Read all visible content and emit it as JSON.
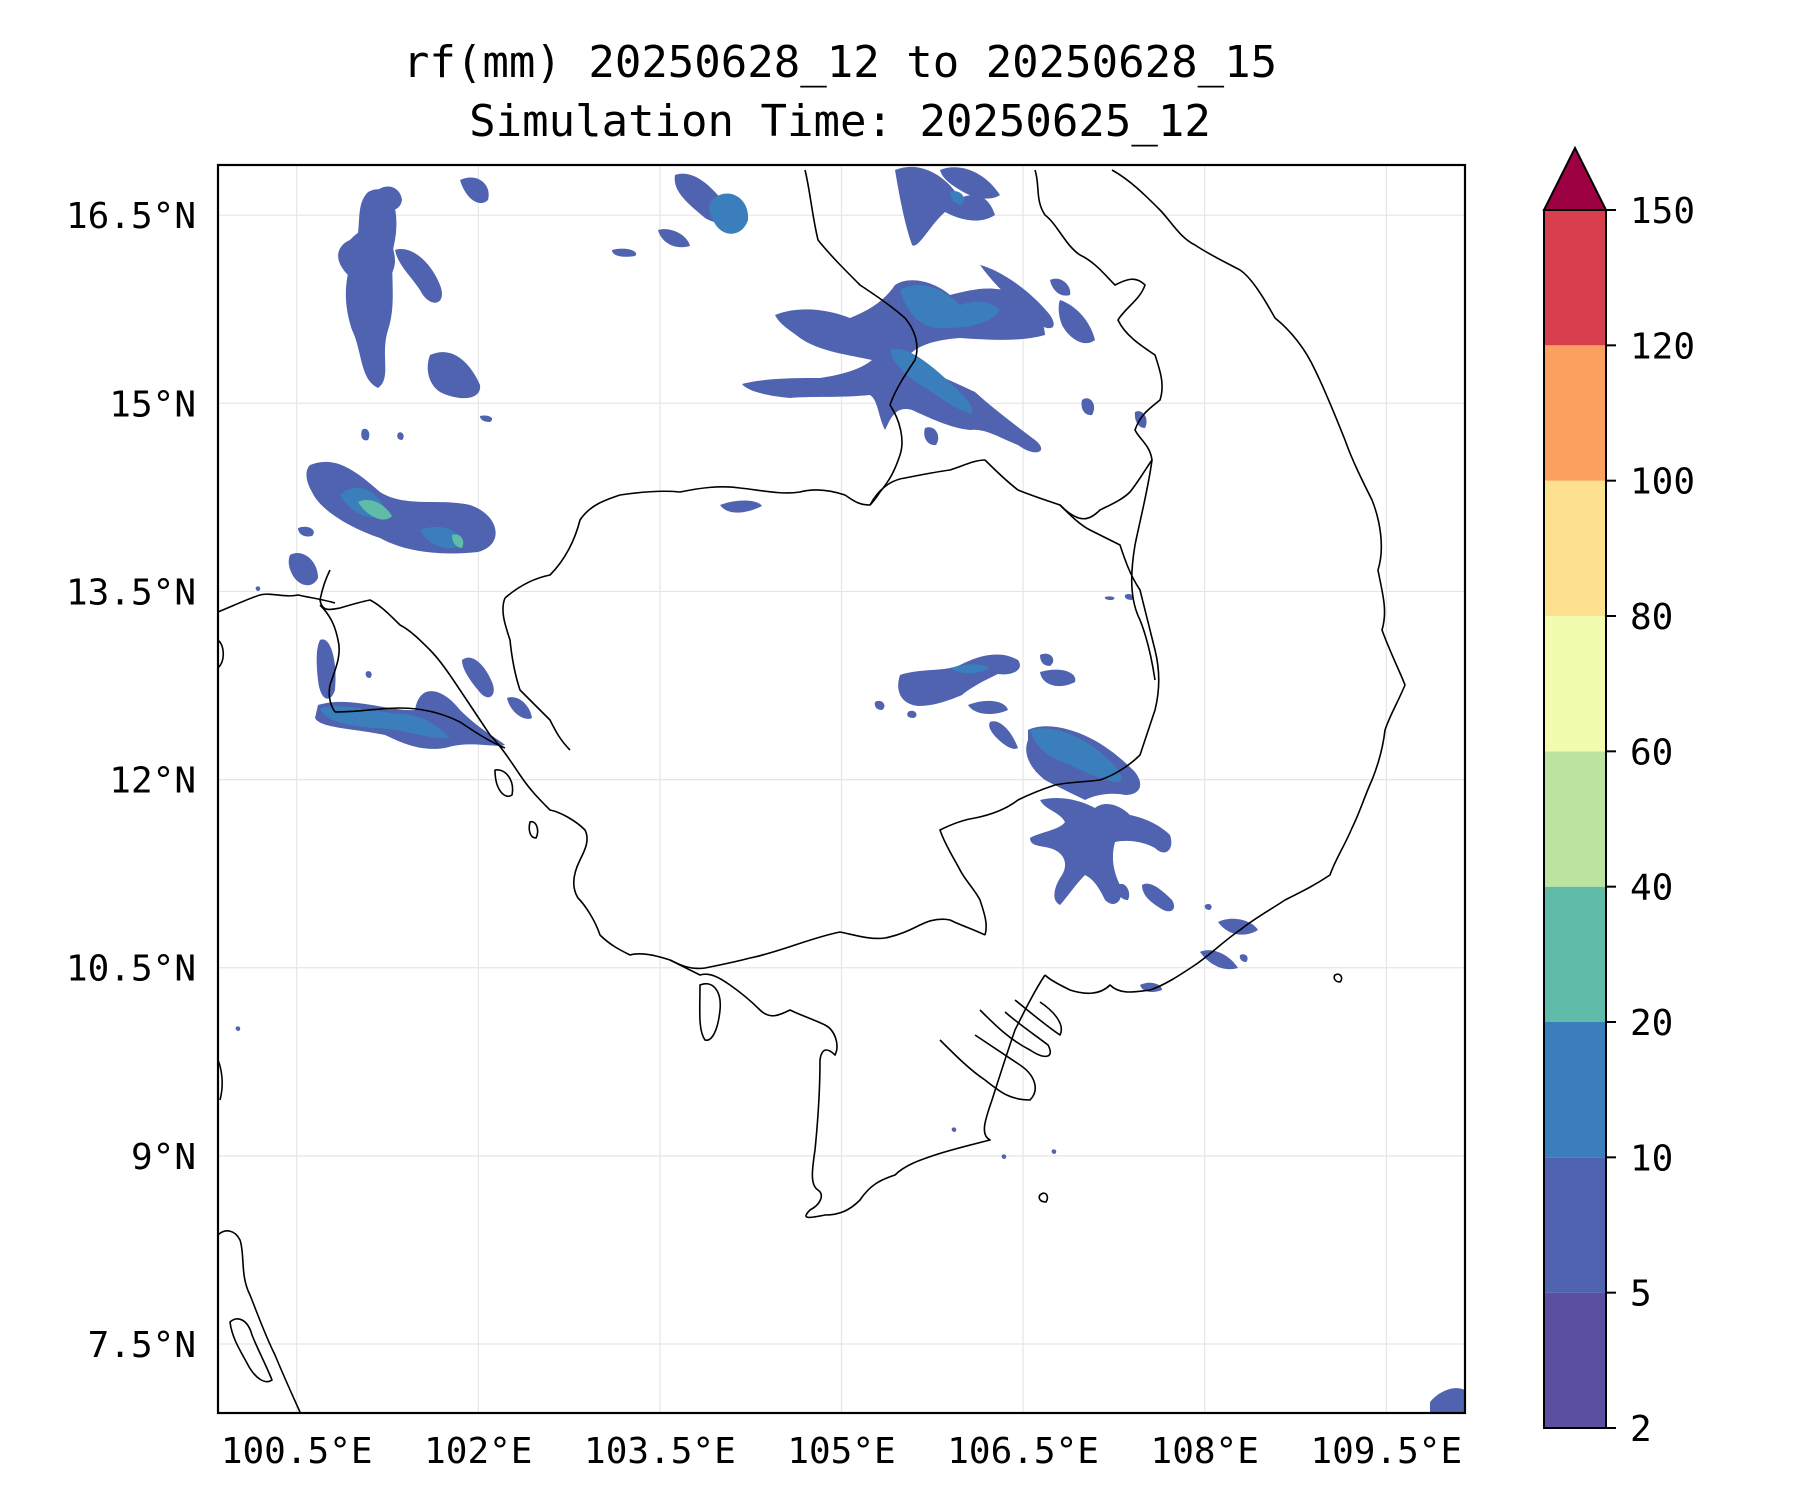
{
  "title_line1": "rf(mm) 20250628_12 to 20250628_15",
  "title_line2": "Simulation Time: 20250625_12",
  "map": {
    "lon_range": [
      99.85,
      110.15
    ],
    "lat_range": [
      6.95,
      16.9
    ],
    "lon_ticks": [
      100.5,
      102,
      103.5,
      105,
      106.5,
      108,
      109.5
    ],
    "lat_ticks": [
      7.5,
      9,
      10.5,
      12,
      13.5,
      15,
      16.5
    ],
    "lon_tick_labels": [
      "100.5°E",
      "102°E",
      "103.5°E",
      "105°E",
      "106.5°E",
      "108°E",
      "109.5°E"
    ],
    "lat_tick_labels": [
      "7.5°N",
      "9°N",
      "10.5°N",
      "12°N",
      "13.5°N",
      "15°N",
      "16.5°N"
    ],
    "gridlines": true
  },
  "colorbar": {
    "levels": [
      2,
      5,
      10,
      20,
      40,
      60,
      80,
      100,
      120,
      150
    ],
    "level_labels": [
      "2",
      "5",
      "10",
      "20",
      "40",
      "60",
      "80",
      "100",
      "120",
      "150"
    ],
    "colors": [
      "#5b4fa0",
      "#4f63b0",
      "#3a7fbb",
      "#60bba8",
      "#bde3a0",
      "#f2fbae",
      "#fde18f",
      "#fba05e",
      "#d83f4e"
    ],
    "extend_color": "#9e0142",
    "extend": "max"
  }
}
